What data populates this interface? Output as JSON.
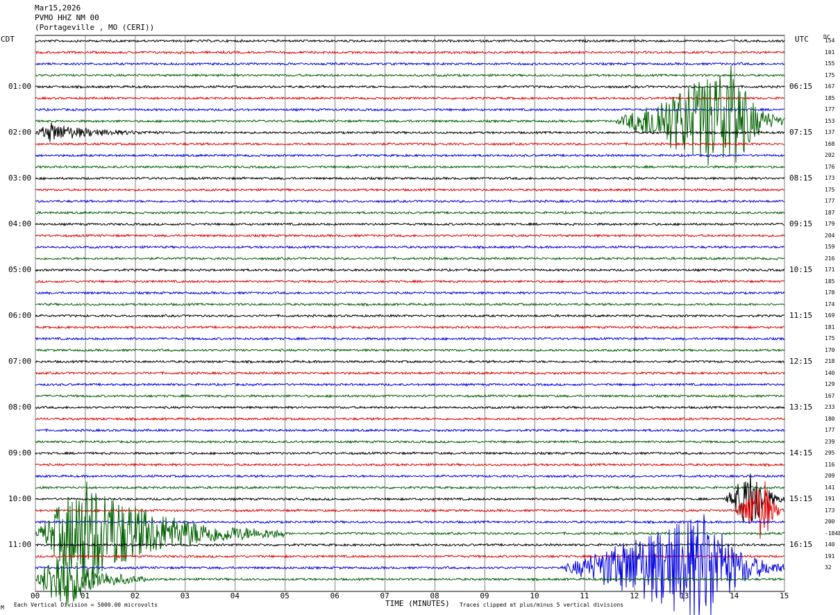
{
  "header": {
    "date": "Mar15,2026",
    "station": "PVMO HHZ NM 00",
    "location": "(Portageville , MO (CERI))"
  },
  "left_zone": "CDT",
  "right_zone": "UTC",
  "dc_header": "DC",
  "footer": {
    "scale_note": "Each Vertical Division = 5000.00 microvolts",
    "clip_note": "Traces clipped at plus/minus 5 vertical divisions",
    "corner_mark": "M"
  },
  "chart_data": {
    "type": "line",
    "title": "",
    "xlabel": "TIME (MINUTES)",
    "ylabel": "",
    "xlim": [
      0,
      15
    ],
    "x_ticks": [
      "00",
      "01",
      "02",
      "03",
      "04",
      "05",
      "06",
      "07",
      "08",
      "09",
      "10",
      "11",
      "12",
      "13",
      "14",
      "15"
    ],
    "trace_minutes": 15,
    "trace_count": 48,
    "trace_colors": [
      "#000000",
      "#e00000",
      "#0000e0",
      "#006000"
    ],
    "hour_labels_local": [
      "01:00",
      "02:00",
      "03:00",
      "04:00",
      "05:00",
      "06:00",
      "07:00",
      "08:00",
      "09:00",
      "10:00",
      "11:00"
    ],
    "hour_labels_utc": [
      "06:15",
      "07:15",
      "08:15",
      "09:15",
      "10:15",
      "11:15",
      "12:15",
      "13:15",
      "14:15",
      "15:15",
      "16:15"
    ],
    "dc_offsets": [
      "154",
      "101",
      "155",
      "175",
      "167",
      "185",
      "177",
      "153",
      "137",
      "168",
      "202",
      "176",
      "173",
      "175",
      "177",
      "187",
      "179",
      "204",
      "159",
      "216",
      "171",
      "185",
      "178",
      "174",
      "169",
      "181",
      "175",
      "170",
      "218",
      "140",
      "129",
      "167",
      "233",
      "180",
      "177",
      "239",
      "295",
      "116",
      "209",
      "141",
      "191",
      "173",
      "200",
      "-1848",
      "140",
      "191",
      "32"
    ],
    "events": [
      {
        "trace": 7,
        "start_min": 11.6,
        "peak_min": 14.0,
        "end_min": 15.0,
        "amplitude": 5,
        "clipped": true
      },
      {
        "trace": 8,
        "start_min": 0.0,
        "peak_min": 0.3,
        "end_min": 2.5,
        "amplitude": 0.8,
        "clipped": false
      },
      {
        "trace": 40,
        "start_min": 13.8,
        "peak_min": 14.4,
        "end_min": 15.0,
        "amplitude": 3,
        "clipped": true
      },
      {
        "trace": 41,
        "start_min": 14.0,
        "peak_min": 14.6,
        "end_min": 15.0,
        "amplitude": 3,
        "clipped": true
      },
      {
        "trace": 43,
        "start_min": 0.0,
        "peak_min": 1.0,
        "end_min": 5.0,
        "amplitude": 5,
        "clipped": true
      },
      {
        "trace": 46,
        "start_min": 10.5,
        "peak_min": 13.5,
        "end_min": 15.0,
        "amplitude": 5,
        "clipped": true
      },
      {
        "trace": 47,
        "start_min": 0.0,
        "peak_min": 0.5,
        "end_min": 2.2,
        "amplitude": 3,
        "clipped": true
      }
    ]
  }
}
